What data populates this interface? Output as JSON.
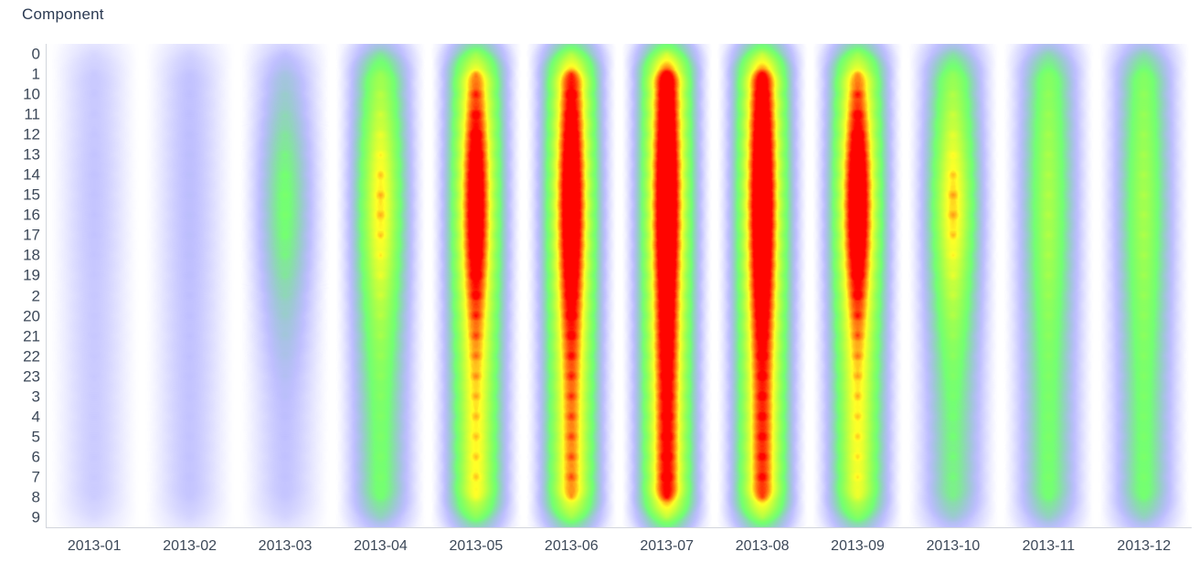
{
  "header": {
    "title": "Component"
  },
  "chart_data": {
    "type": "heatmap",
    "title": "Component",
    "x_categories": [
      "2013-01",
      "2013-02",
      "2013-03",
      "2013-04",
      "2013-05",
      "2013-06",
      "2013-07",
      "2013-08",
      "2013-09",
      "2013-10",
      "2013-11",
      "2013-12"
    ],
    "y_categories": [
      "0",
      "1",
      "10",
      "11",
      "12",
      "13",
      "14",
      "15",
      "16",
      "17",
      "18",
      "19",
      "2",
      "20",
      "21",
      "22",
      "23",
      "3",
      "4",
      "5",
      "6",
      "7",
      "8",
      "9"
    ],
    "value_note": "relative intensity 0-100, estimated from blur-heatmap colors",
    "series": [
      {
        "name": "2013-01",
        "values": [
          19,
          19,
          19,
          19,
          19,
          20,
          20,
          20,
          20,
          20,
          20,
          19,
          19,
          19,
          19,
          19,
          18,
          18,
          18,
          18,
          18,
          18,
          18,
          18
        ]
      },
      {
        "name": "2013-02",
        "values": [
          21,
          21,
          21,
          22,
          22,
          23,
          23,
          23,
          23,
          23,
          23,
          22,
          22,
          21,
          21,
          21,
          21,
          20,
          20,
          20,
          20,
          20,
          20,
          20
        ]
      },
      {
        "name": "2013-03",
        "values": [
          28,
          31,
          34,
          38,
          42,
          46,
          49,
          50,
          50,
          49,
          46,
          42,
          38,
          34,
          31,
          28,
          25,
          23,
          22,
          21,
          21,
          20,
          20,
          20
        ]
      },
      {
        "name": "2013-04",
        "values": [
          57,
          60,
          63,
          67,
          71,
          74,
          77,
          78,
          78,
          77,
          74,
          71,
          67,
          63,
          60,
          57,
          55,
          53,
          52,
          51,
          51,
          50,
          50,
          50
        ]
      },
      {
        "name": "2013-05",
        "values": [
          81,
          83,
          85,
          88,
          91,
          93,
          95,
          96,
          96,
          95,
          93,
          91,
          88,
          85,
          83,
          81,
          79,
          78,
          77,
          77,
          76,
          76,
          76,
          76
        ]
      },
      {
        "name": "2013-06",
        "values": [
          86,
          88,
          90,
          92,
          94,
          96,
          97,
          98,
          98,
          97,
          96,
          94,
          92,
          90,
          88,
          86,
          85,
          84,
          83,
          83,
          82,
          82,
          82,
          82
        ]
      },
      {
        "name": "2013-07",
        "values": [
          93,
          94,
          95,
          96,
          97,
          99,
          100,
          100,
          100,
          100,
          99,
          97,
          96,
          95,
          94,
          93,
          92,
          91,
          91,
          90,
          90,
          90,
          90,
          90
        ]
      },
      {
        "name": "2013-08",
        "values": [
          90,
          92,
          93,
          95,
          97,
          98,
          99,
          100,
          100,
          99,
          98,
          97,
          95,
          93,
          92,
          90,
          89,
          88,
          88,
          88,
          87,
          87,
          87,
          87
        ]
      },
      {
        "name": "2013-09",
        "values": [
          80,
          82,
          85,
          89,
          92,
          95,
          97,
          98,
          98,
          97,
          95,
          92,
          89,
          85,
          82,
          80,
          78,
          77,
          76,
          75,
          75,
          74,
          74,
          74
        ]
      },
      {
        "name": "2013-10",
        "values": [
          54,
          58,
          62,
          66,
          70,
          74,
          77,
          79,
          79,
          77,
          74,
          70,
          66,
          62,
          58,
          54,
          52,
          50,
          48,
          47,
          47,
          46,
          46,
          46
        ]
      },
      {
        "name": "2013-11",
        "values": [
          53,
          55,
          56,
          58,
          60,
          61,
          62,
          63,
          63,
          62,
          61,
          60,
          58,
          56,
          55,
          53,
          52,
          51,
          51,
          51,
          50,
          50,
          50,
          50
        ]
      },
      {
        "name": "2013-12",
        "values": [
          53,
          54,
          56,
          57,
          59,
          60,
          61,
          62,
          62,
          61,
          60,
          59,
          57,
          56,
          54,
          53,
          52,
          51,
          51,
          50,
          50,
          50,
          50,
          50
        ]
      }
    ],
    "palette": [
      {
        "pos": 0.0,
        "color": "#0000ff"
      },
      {
        "pos": 0.25,
        "color": "#0000ff"
      },
      {
        "pos": 0.55,
        "color": "#00ff00"
      },
      {
        "pos": 0.85,
        "color": "#ffff00"
      },
      {
        "pos": 1.0,
        "color": "#ff0000"
      }
    ],
    "render": {
      "point_radius": 50,
      "alpha_scale": 0.5
    },
    "layout": {
      "grid": false,
      "legend": "none",
      "x_axis_line": true,
      "y_axis_line": true
    },
    "colors": {
      "title_text": "#2b3a52",
      "tick_text": "#3c4858",
      "axis_line": "#d2d5dc",
      "background": "#ffffff"
    }
  }
}
